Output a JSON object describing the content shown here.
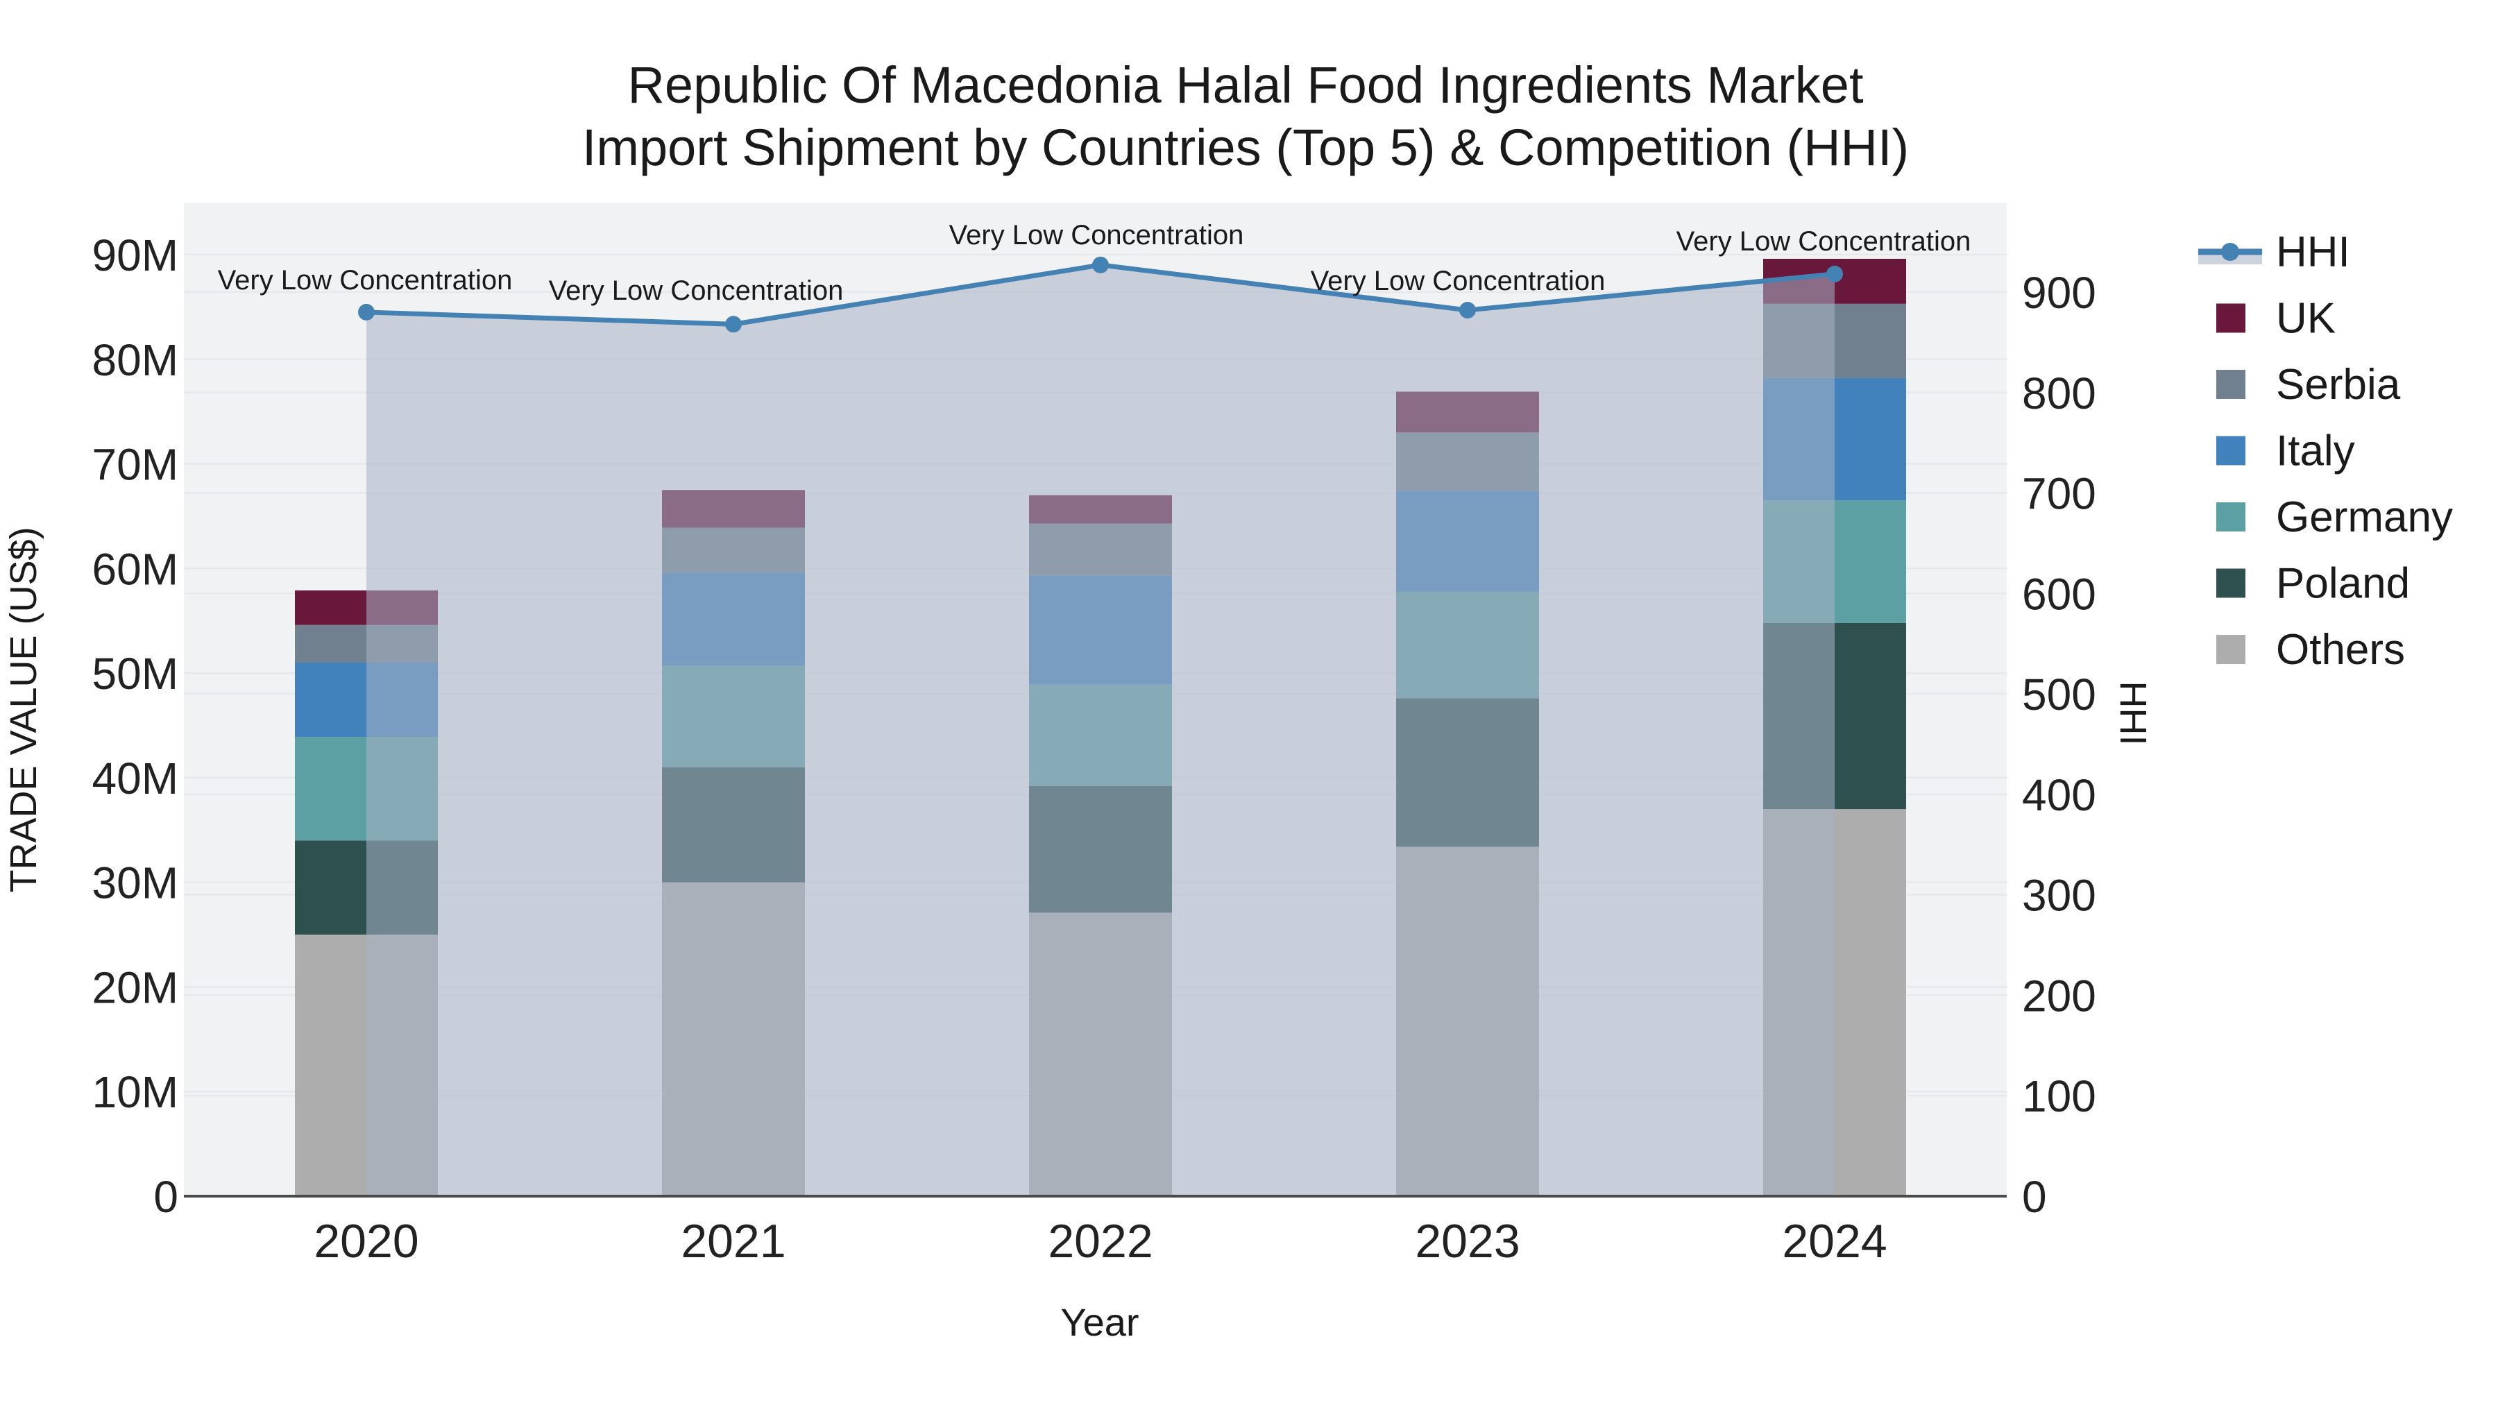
{
  "chart_data": {
    "type": "bar",
    "stacked": true,
    "title_lines": [
      "Republic Of Macedonia Halal Food Ingredients Market",
      "Import Shipment by Countries (Top 5) & Competition (HHI)"
    ],
    "xlabel": "Year",
    "ylabel": "TRADE VALUE (US$)",
    "y2label": "HHI",
    "categories": [
      "2020",
      "2021",
      "2022",
      "2023",
      "2024"
    ],
    "stack_order": [
      "Others",
      "Poland",
      "Germany",
      "Italy",
      "Serbia",
      "UK"
    ],
    "series": [
      {
        "name": "UK",
        "color": "#69173a",
        "values": [
          3.3,
          3.6,
          2.7,
          3.9,
          4.3
        ]
      },
      {
        "name": "Serbia",
        "color": "#71808f",
        "values": [
          3.6,
          4.3,
          5.0,
          5.6,
          7.1
        ]
      },
      {
        "name": "Italy",
        "color": "#4181bc",
        "values": [
          7.1,
          8.9,
          10.4,
          9.6,
          11.7
        ]
      },
      {
        "name": "Germany",
        "color": "#5da0a4",
        "values": [
          9.9,
          9.7,
          9.7,
          10.2,
          11.7
        ]
      },
      {
        "name": "Poland",
        "color": "#2e5150",
        "values": [
          9.0,
          11.0,
          12.1,
          14.2,
          17.8
        ]
      },
      {
        "name": "Others",
        "color": "#acadac",
        "values": [
          25.0,
          30.0,
          27.1,
          33.4,
          37.0
        ]
      }
    ],
    "hhi": {
      "name": "HHI",
      "values": [
        880,
        868,
        927,
        882,
        918
      ],
      "axis": "right",
      "line_color": "#4582b4",
      "fill_color": "rgba(168,178,197,0.55)",
      "legend_band_color": "#cdd3dc"
    },
    "annotations": [
      {
        "text": "Very Low Concentration",
        "x": 526,
        "y": 403
      },
      {
        "text": "Very Low Concentration",
        "x": 1003,
        "y": 418
      },
      {
        "text": "Very Low Concentration",
        "x": 1580,
        "y": 338
      },
      {
        "text": "Very Low Concentration",
        "x": 2101,
        "y": 404
      },
      {
        "text": "Very Low Concentration",
        "x": 2628,
        "y": 347
      }
    ],
    "left_axis": {
      "label": "TRADE VALUE (US$)",
      "units": "millions USD",
      "range": [
        0,
        95
      ],
      "ticks": [
        {
          "value": 0,
          "label": "0"
        },
        {
          "value": 10,
          "label": "10M"
        },
        {
          "value": 20,
          "label": "20M"
        },
        {
          "value": 30,
          "label": "30M"
        },
        {
          "value": 40,
          "label": "40M"
        },
        {
          "value": 50,
          "label": "50M"
        },
        {
          "value": 60,
          "label": "60M"
        },
        {
          "value": 70,
          "label": "70M"
        },
        {
          "value": 80,
          "label": "80M"
        },
        {
          "value": 90,
          "label": "90M"
        }
      ]
    },
    "right_axis": {
      "label": "HHI",
      "range": [
        0,
        985
      ],
      "ticks": [
        {
          "value": 0,
          "label": "0"
        },
        {
          "value": 100,
          "label": "100"
        },
        {
          "value": 200,
          "label": "200"
        },
        {
          "value": 300,
          "label": "300"
        },
        {
          "value": 400,
          "label": "400"
        },
        {
          "value": 500,
          "label": "500"
        },
        {
          "value": 600,
          "label": "600"
        },
        {
          "value": 700,
          "label": "700"
        },
        {
          "value": 800,
          "label": "800"
        },
        {
          "value": 900,
          "label": "900"
        }
      ]
    },
    "legend": {
      "position": "right",
      "entries": [
        "HHI",
        "UK",
        "Serbia",
        "Italy",
        "Germany",
        "Poland",
        "Others"
      ]
    },
    "grid": true,
    "plot_bg": "#f1f2f3",
    "grid_color": "#e6e8eb",
    "axis_line_color": "#4a4a4a"
  }
}
